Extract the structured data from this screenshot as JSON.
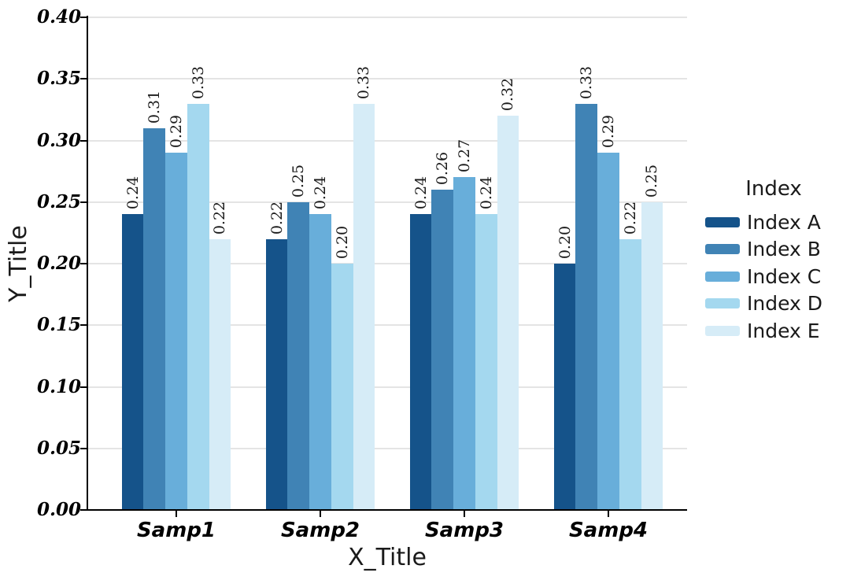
{
  "chart_data": {
    "type": "bar",
    "title": "",
    "xlabel": "X_Title",
    "ylabel": "Y_Title",
    "legend_title": "Index",
    "legend_position": "right",
    "grid": "horizontal",
    "bar_labels_rotated": true,
    "ylim": [
      0.0,
      0.4
    ],
    "ytick_step": 0.05,
    "yticks": [
      "0.00",
      "0.05",
      "0.10",
      "0.15",
      "0.20",
      "0.25",
      "0.30",
      "0.35",
      "0.40"
    ],
    "categories": [
      "Samp1",
      "Samp2",
      "Samp3",
      "Samp4"
    ],
    "series": [
      {
        "name": "Index A",
        "color": "#15538a",
        "values": [
          0.24,
          0.22,
          0.24,
          0.2
        ]
      },
      {
        "name": "Index B",
        "color": "#4083b5",
        "values": [
          0.31,
          0.25,
          0.26,
          0.33
        ]
      },
      {
        "name": "Index C",
        "color": "#68aeda",
        "values": [
          0.29,
          0.24,
          0.27,
          0.29
        ]
      },
      {
        "name": "Index D",
        "color": "#a4d8ef",
        "values": [
          0.33,
          0.2,
          0.24,
          0.22
        ]
      },
      {
        "name": "Index E",
        "color": "#d6ecf7",
        "values": [
          0.22,
          0.33,
          0.32,
          0.25
        ]
      }
    ],
    "value_label_format": "2dp"
  }
}
